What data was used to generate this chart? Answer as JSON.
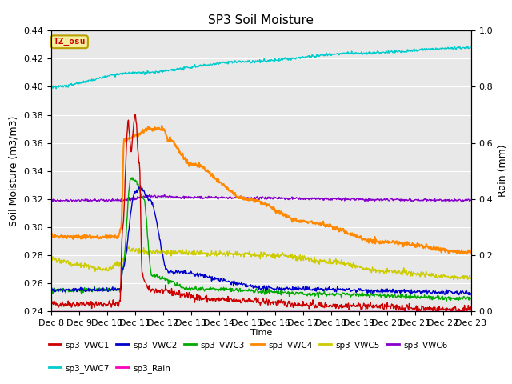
{
  "title": "SP3 Soil Moisture",
  "ylabel_left": "Soil Moisture (m3/m3)",
  "ylabel_right": "Rain (mm)",
  "xlabel": "Time",
  "ylim_left": [
    0.24,
    0.44
  ],
  "ylim_right": [
    0.0,
    1.0
  ],
  "background_color": "#e8e8e8",
  "annotation_text": "TZ_osu",
  "annotation_bg": "#f5f0a0",
  "annotation_border": "#b8a000",
  "annotation_text_color": "#cc0000",
  "x_ticks": [
    "Dec 8",
    "Dec 9",
    "Dec 10",
    "Dec 11",
    "Dec 12",
    "Dec 13",
    "Dec 14",
    "Dec 15",
    "Dec 16",
    "Dec 17",
    "Dec 18",
    "Dec 19",
    "Dec 20",
    "Dec 21",
    "Dec 22",
    "Dec 23"
  ],
  "series": {
    "sp3_VWC1": {
      "color": "#cc0000",
      "lw": 1.0
    },
    "sp3_VWC2": {
      "color": "#0000cc",
      "lw": 1.0
    },
    "sp3_VWC3": {
      "color": "#00aa00",
      "lw": 1.0
    },
    "sp3_VWC4": {
      "color": "#ff8800",
      "lw": 1.5
    },
    "sp3_VWC5": {
      "color": "#cccc00",
      "lw": 1.0
    },
    "sp3_VWC6": {
      "color": "#8800cc",
      "lw": 1.0
    },
    "sp3_VWC7": {
      "color": "#00cccc",
      "lw": 1.0
    },
    "sp3_Rain": {
      "color": "#ff00bb",
      "lw": 1.0
    }
  }
}
